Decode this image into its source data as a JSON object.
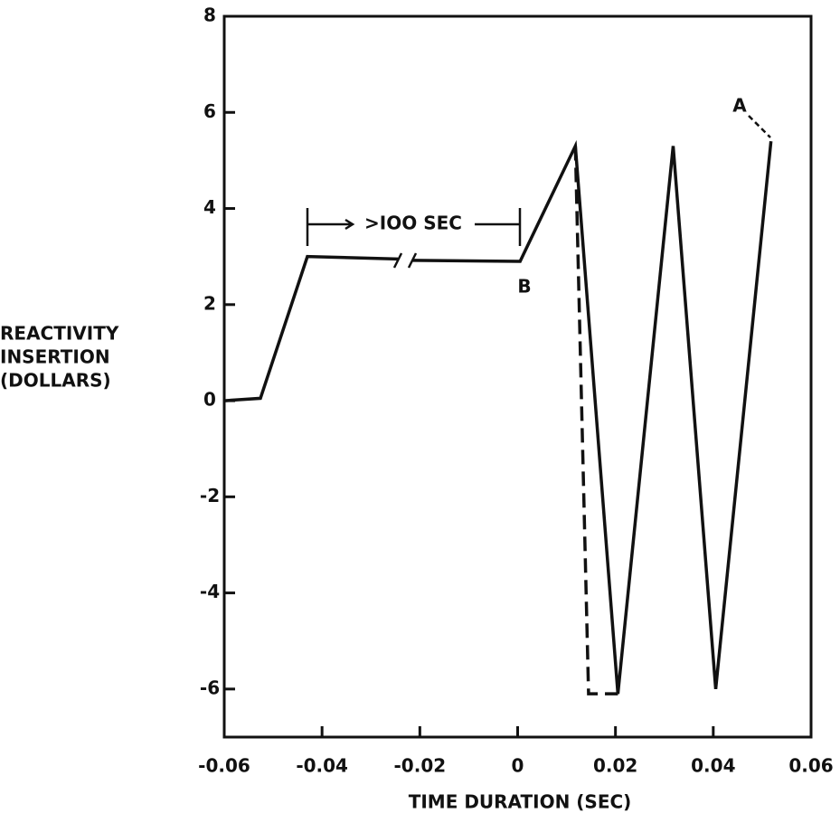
{
  "chart_data": {
    "type": "line",
    "xlabel": "TIME DURATION (SEC)",
    "ylabel": [
      "REACTIVITY",
      "INSERTION",
      "(DOLLARS)"
    ],
    "xlim": [
      -0.06,
      0.06
    ],
    "ylim": [
      -7,
      8
    ],
    "xticks": [
      -0.06,
      -0.04,
      -0.02,
      0,
      0.02,
      0.04,
      0.06
    ],
    "yticks": [
      -6,
      -4,
      -2,
      0,
      2,
      4,
      6,
      8
    ],
    "series": [
      {
        "color": "#111111",
        "style": "solid",
        "x": [
          -0.06,
          -0.0526,
          -0.043,
          -0.0245,
          null,
          -0.0215,
          0.0005,
          0.0118,
          0.0205,
          0.0318,
          0.0405,
          0.0518
        ],
        "values": [
          0,
          0.05,
          3,
          2.95,
          null,
          2.92,
          2.9,
          5.3,
          -6.1,
          5.3,
          -6,
          5.4
        ]
      },
      {
        "color": "#111111",
        "style": "dashed",
        "x": [
          0.0118,
          0.0145,
          0.0205
        ],
        "values": [
          5.3,
          -6.1,
          -6.1
        ]
      }
    ],
    "annotations": [
      "A",
      "B",
      ">IOO SEC"
    ]
  }
}
